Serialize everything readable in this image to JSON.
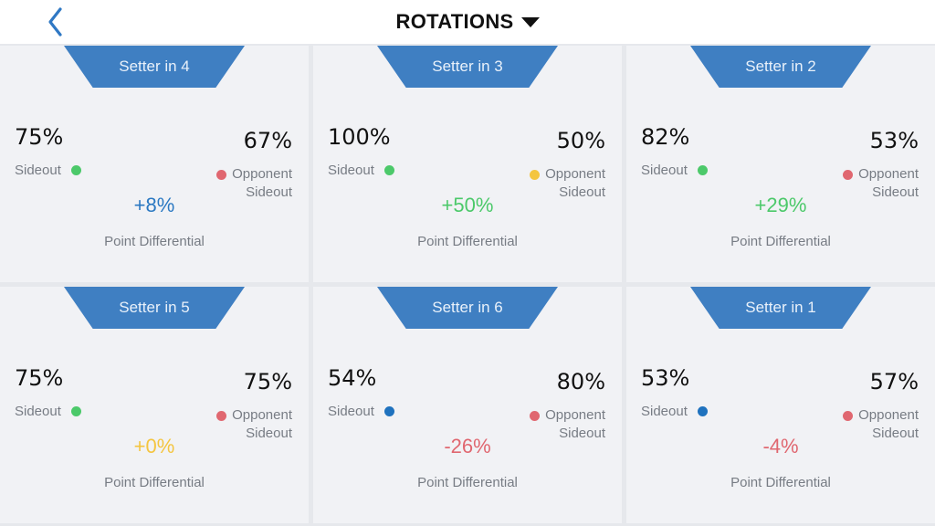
{
  "header": {
    "title": "ROTATIONS",
    "back_icon": "chevron-left-icon",
    "menu_icon": "caret-down-icon",
    "accent": "#2f78c4"
  },
  "colors": {
    "tab": "#3f7fc2",
    "green": "#4cc96a",
    "blue": "#1f72be",
    "yellow": "#f4c540",
    "red": "#e06770",
    "diff_blue": "#2a78c2",
    "diff_green": "#4cc96a",
    "diff_yellow": "#f4c540",
    "diff_red": "#e06770"
  },
  "cards": [
    {
      "title": "Setter in 4",
      "sideout": "75%",
      "sideout_label": "Sideout",
      "sideout_color": "#4cc96a",
      "opp": "67%",
      "opp_label_1": "Opponent",
      "opp_label_2": "Sideout",
      "opp_color": "#e06770",
      "diff": "+8%",
      "diff_color": "#2a78c2",
      "diff_label": "Point Differential"
    },
    {
      "title": "Setter in 3",
      "sideout": "100%",
      "sideout_label": "Sideout",
      "sideout_color": "#4cc96a",
      "opp": "50%",
      "opp_label_1": "Opponent",
      "opp_label_2": "Sideout",
      "opp_color": "#f4c540",
      "diff": "+50%",
      "diff_color": "#4cc96a",
      "diff_label": "Point Differential"
    },
    {
      "title": "Setter in 2",
      "sideout": "82%",
      "sideout_label": "Sideout",
      "sideout_color": "#4cc96a",
      "opp": "53%",
      "opp_label_1": "Opponent",
      "opp_label_2": "Sideout",
      "opp_color": "#e06770",
      "diff": "+29%",
      "diff_color": "#4cc96a",
      "diff_label": "Point Differential"
    },
    {
      "title": "Setter in 5",
      "sideout": "75%",
      "sideout_label": "Sideout",
      "sideout_color": "#4cc96a",
      "opp": "75%",
      "opp_label_1": "Opponent",
      "opp_label_2": "Sideout",
      "opp_color": "#e06770",
      "diff": "+0%",
      "diff_color": "#f4c540",
      "diff_label": "Point Differential"
    },
    {
      "title": "Setter in 6",
      "sideout": "54%",
      "sideout_label": "Sideout",
      "sideout_color": "#1f72be",
      "opp": "80%",
      "opp_label_1": "Opponent",
      "opp_label_2": "Sideout",
      "opp_color": "#e06770",
      "diff": "-26%",
      "diff_color": "#e06770",
      "diff_label": "Point Differential"
    },
    {
      "title": "Setter in 1",
      "sideout": "53%",
      "sideout_label": "Sideout",
      "sideout_color": "#1f72be",
      "opp": "57%",
      "opp_label_1": "Opponent",
      "opp_label_2": "Sideout",
      "opp_color": "#e06770",
      "diff": "-4%",
      "diff_color": "#e06770",
      "diff_label": "Point Differential"
    }
  ]
}
